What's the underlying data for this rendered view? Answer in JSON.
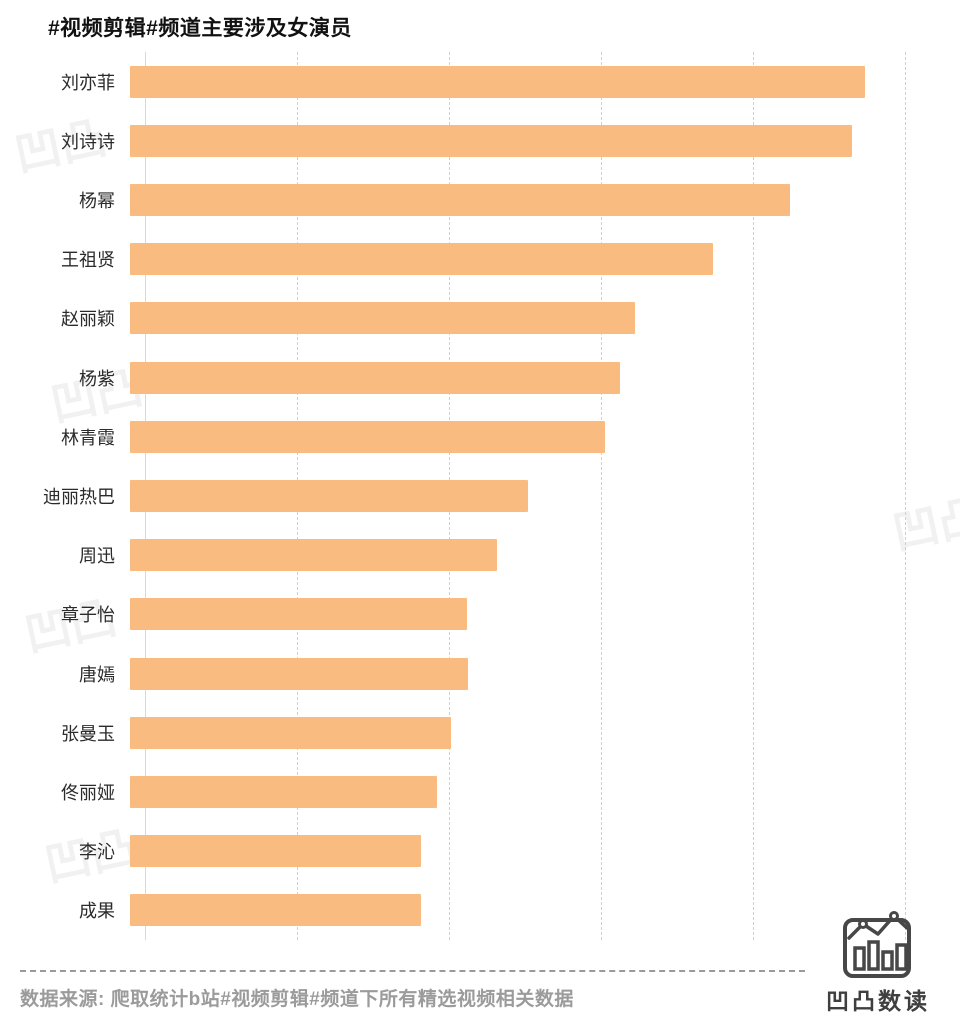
{
  "title": "#视频剪辑#频道主要涉及女演员",
  "watermark_text": "凹凸",
  "footer": {
    "source": "数据来源: 爬取统计b站#视频剪辑#频道下所有精选视频相关数据"
  },
  "logo": {
    "text": "凹凸数读",
    "icon": "bar-chart-with-trendline-icon"
  },
  "colors": {
    "bar": "#F9BB80",
    "title": "#111111",
    "label": "#2b2b2b",
    "gridline": "#cfcfcf",
    "footer_text": "#9b9b9b"
  },
  "chart_data": {
    "type": "bar",
    "orientation": "horizontal",
    "title": "#视频剪辑#频道主要涉及女演员",
    "categories": [
      "刘亦菲",
      "刘诗诗",
      "杨幂",
      "王祖贤",
      "赵丽颖",
      "杨紫",
      "林青霞",
      "迪丽热巴",
      "周迅",
      "章子怡",
      "唐嫣",
      "张曼玉",
      "佟丽娅",
      "李沁",
      "成果"
    ],
    "values": [
      96.7,
      95.0,
      86.8,
      76.7,
      66.4,
      64.5,
      62.5,
      52.4,
      48.3,
      44.4,
      44.5,
      42.2,
      40.4,
      38.3,
      38.3
    ],
    "xlim": [
      0,
      100
    ],
    "xlabel": "",
    "ylabel": "",
    "grid": "dashed-vertical",
    "gridline_positions": [
      0,
      20,
      40,
      60,
      80,
      100
    ],
    "value_note": "no numeric axis labels shown; values are relative scale estimated from gridlines",
    "source_note": "数据来源: 爬取统计b站#视频剪辑#频道下所有精选视频相关数据"
  }
}
